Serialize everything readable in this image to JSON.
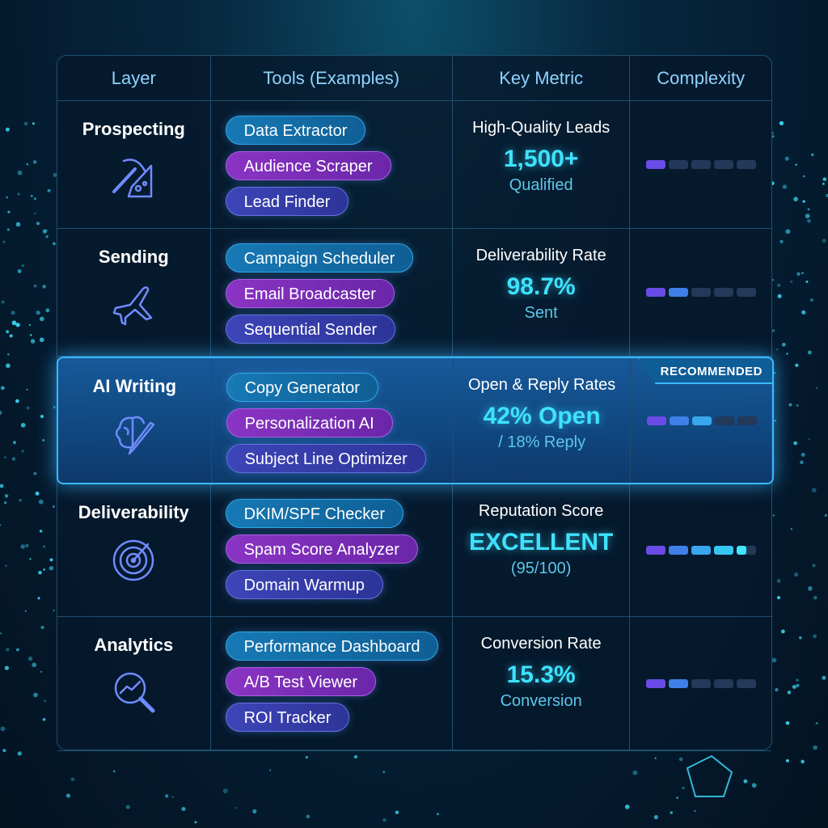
{
  "headers": {
    "layer": "Layer",
    "tools": "Tools (Examples)",
    "metric": "Key Metric",
    "complexity": "Complexity"
  },
  "badge": "RECOMMENDED",
  "colors": {
    "accent": "#3ee2ff",
    "blue_pill": "#1779b5",
    "purple_pill": "#8a34c4",
    "indigo_pill": "#3d45b8",
    "highlight_border": "#3ab8ff"
  },
  "rows": [
    {
      "layer": "Prospecting",
      "icon": "pickaxe-icon",
      "tools": [
        "Data Extractor",
        "Audience Scraper",
        "Lead Finder"
      ],
      "metric_label": "High-Quality Leads",
      "metric_value": "1,500+",
      "metric_sub": "Qualified",
      "complexity": 1
    },
    {
      "layer": "Sending",
      "icon": "airplane-icon",
      "tools": [
        "Campaign Scheduler",
        "Email Broadcaster",
        "Sequential Sender"
      ],
      "metric_label": "Deliverability Rate",
      "metric_value": "98.7%",
      "metric_sub": "Sent",
      "complexity": 2
    },
    {
      "layer": "AI Writing",
      "icon": "brain-pen-icon",
      "tools": [
        "Copy Generator",
        "Personalization AI",
        "Subject Line Optimizer"
      ],
      "metric_label": "Open & Reply Rates",
      "metric_value": "42% Open",
      "metric_sub": "/ 18% Reply",
      "complexity": 3,
      "recommended": true
    },
    {
      "layer": "Deliverability",
      "icon": "radar-icon",
      "tools": [
        "DKIM/SPF Checker",
        "Spam Score Analyzer",
        "Domain Warmup"
      ],
      "metric_label": "Reputation Score",
      "metric_value": "EXCELLENT",
      "metric_sub": "(95/100)",
      "complexity": 4.5
    },
    {
      "layer": "Analytics",
      "icon": "analytics-magnifier-icon",
      "tools": [
        "Performance Dashboard",
        "A/B Test Viewer",
        "ROI Tracker"
      ],
      "metric_label": "Conversion Rate",
      "metric_value": "15.3%",
      "metric_sub": "Conversion",
      "complexity": 2
    }
  ],
  "complexity_max": 5
}
